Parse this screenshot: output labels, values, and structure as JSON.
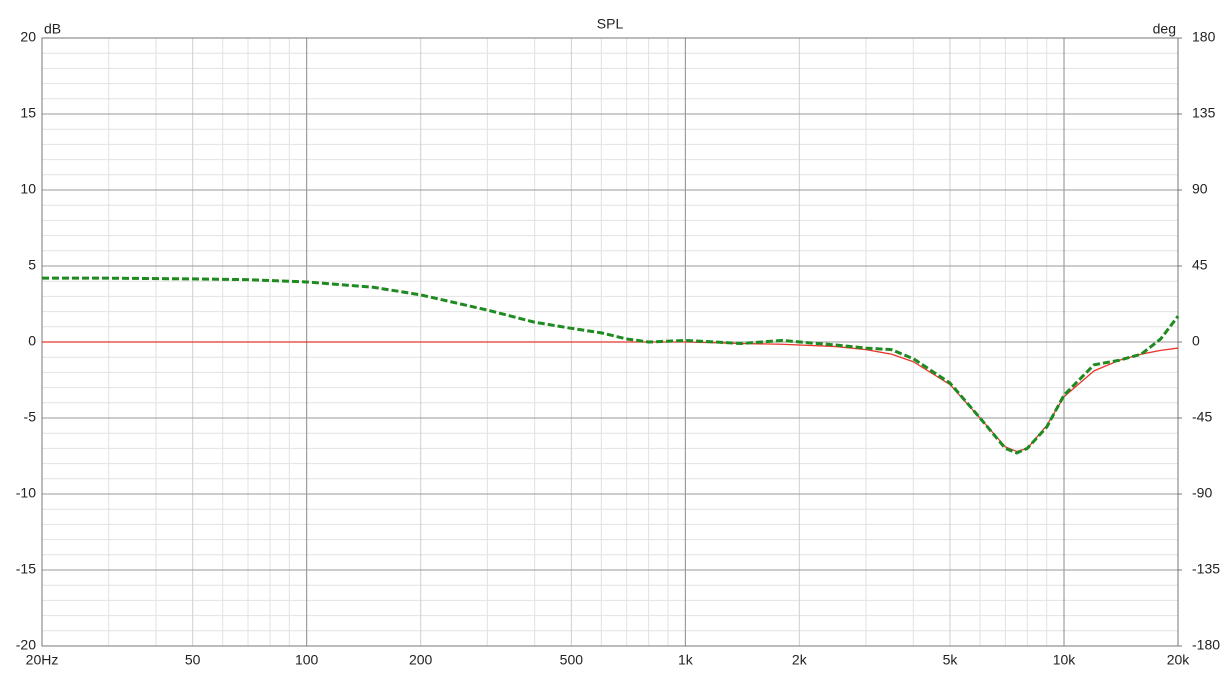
{
  "chart_data": {
    "type": "line",
    "title": "SPL",
    "ylabel": "dB",
    "y2label": "deg",
    "xscale": "log",
    "grid": true,
    "x": [
      20,
      30,
      50,
      70,
      100,
      150,
      200,
      300,
      400,
      500,
      600,
      700,
      800,
      1000,
      1200,
      1400,
      1800,
      2500,
      3000,
      3500,
      4000,
      5000,
      6000,
      7000,
      7500,
      8000,
      9000,
      10000,
      12000,
      14000,
      16000,
      18000,
      20000
    ],
    "series": [
      {
        "color": "#e8352d",
        "style": "solid",
        "values": [
          0,
          0,
          0,
          0,
          0,
          0,
          0,
          0,
          0,
          0,
          0,
          0,
          0,
          0,
          -0.05,
          -0.1,
          -0.15,
          -0.3,
          -0.5,
          -0.8,
          -1.3,
          -2.8,
          -5,
          -6.9,
          -7.2,
          -7,
          -5.5,
          -3.6,
          -1.9,
          -1.2,
          -0.8,
          -0.55,
          -0.4
        ]
      },
      {
        "color": "#1f8a1f",
        "style": "dashed",
        "values": [
          4.2,
          4.2,
          4.15,
          4.1,
          3.95,
          3.6,
          3.1,
          2.1,
          1.3,
          0.9,
          0.6,
          0.2,
          0,
          0.1,
          0,
          -0.1,
          0.1,
          -0.2,
          -0.4,
          -0.5,
          -1.1,
          -2.7,
          -5,
          -7,
          -7.3,
          -7,
          -5.6,
          -3.5,
          -1.5,
          -1.2,
          -0.8,
          0.2,
          1.7
        ]
      }
    ],
    "xlim": [
      20,
      20000
    ],
    "xticks": [
      {
        "value": 20,
        "label": "20Hz"
      },
      50,
      100,
      200,
      500,
      {
        "value": 1000,
        "label": "1k"
      },
      {
        "value": 2000,
        "label": "2k"
      },
      {
        "value": 5000,
        "label": "5k"
      },
      {
        "value": 10000,
        "label": "10k"
      },
      {
        "value": 20000,
        "label": "20k"
      }
    ],
    "x_minor_grid": [
      30,
      40,
      60,
      70,
      80,
      90,
      300,
      400,
      600,
      700,
      800,
      900,
      3000,
      4000,
      6000,
      7000,
      8000,
      9000
    ],
    "ylim": [
      -20,
      20
    ],
    "yticks": [
      20,
      15,
      10,
      5,
      0,
      -5,
      -10,
      -15,
      -20
    ],
    "y_minor_grid": [
      19,
      18,
      17,
      16,
      14,
      13,
      12,
      11,
      9,
      8,
      7,
      6,
      4,
      3,
      2,
      1,
      -1,
      -2,
      -3,
      -4,
      -6,
      -7,
      -8,
      -9,
      -11,
      -12,
      -13,
      -14,
      -16,
      -17,
      -18,
      -19
    ],
    "y2lim": [
      -180,
      180
    ],
    "y2ticks": [
      180,
      135,
      90,
      45,
      0,
      -45,
      -90,
      -135,
      -180
    ]
  }
}
